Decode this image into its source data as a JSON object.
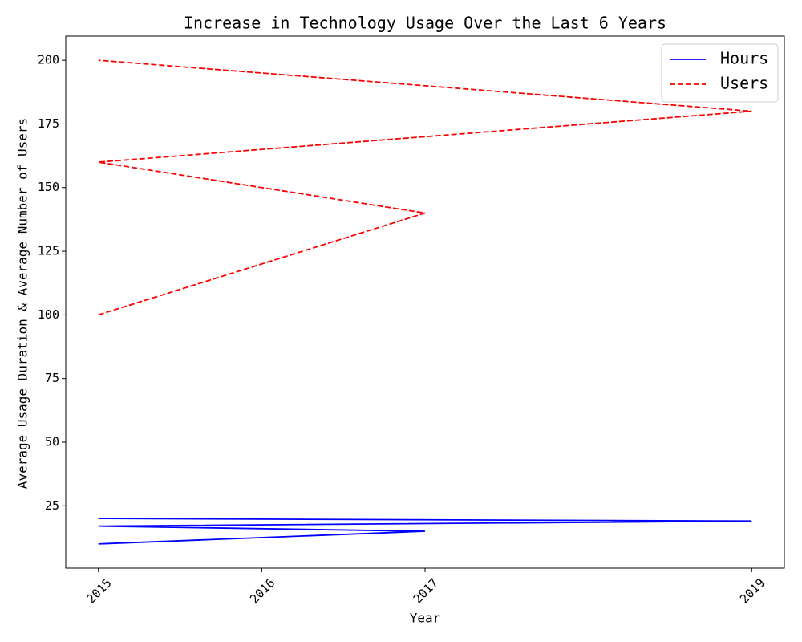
{
  "chart_data": {
    "type": "line",
    "title": "Increase in Technology Usage Over the Last 6 Years",
    "x_label": "Year",
    "y_label": "Average Usage Duration & Average Number of Users",
    "x": [
      2015,
      2017,
      2015,
      2019,
      2015
    ],
    "series": [
      {
        "name": "Hours",
        "color": "#0000ff",
        "dash": "solid",
        "values": [
          10,
          15,
          17,
          19,
          20
        ]
      },
      {
        "name": "Users",
        "color": "#ff0000",
        "dash": "dashed",
        "values": [
          100,
          140,
          160,
          180,
          200
        ]
      }
    ],
    "xlim": [
      2014.8,
      2019.2
    ],
    "xticks": [
      2015,
      2016,
      2017,
      2019
    ],
    "ylim": [
      0.5,
      209.5
    ],
    "yticks": [
      25,
      50,
      75,
      100,
      125,
      150,
      175,
      200
    ],
    "grid": false,
    "legend": "upper right"
  }
}
